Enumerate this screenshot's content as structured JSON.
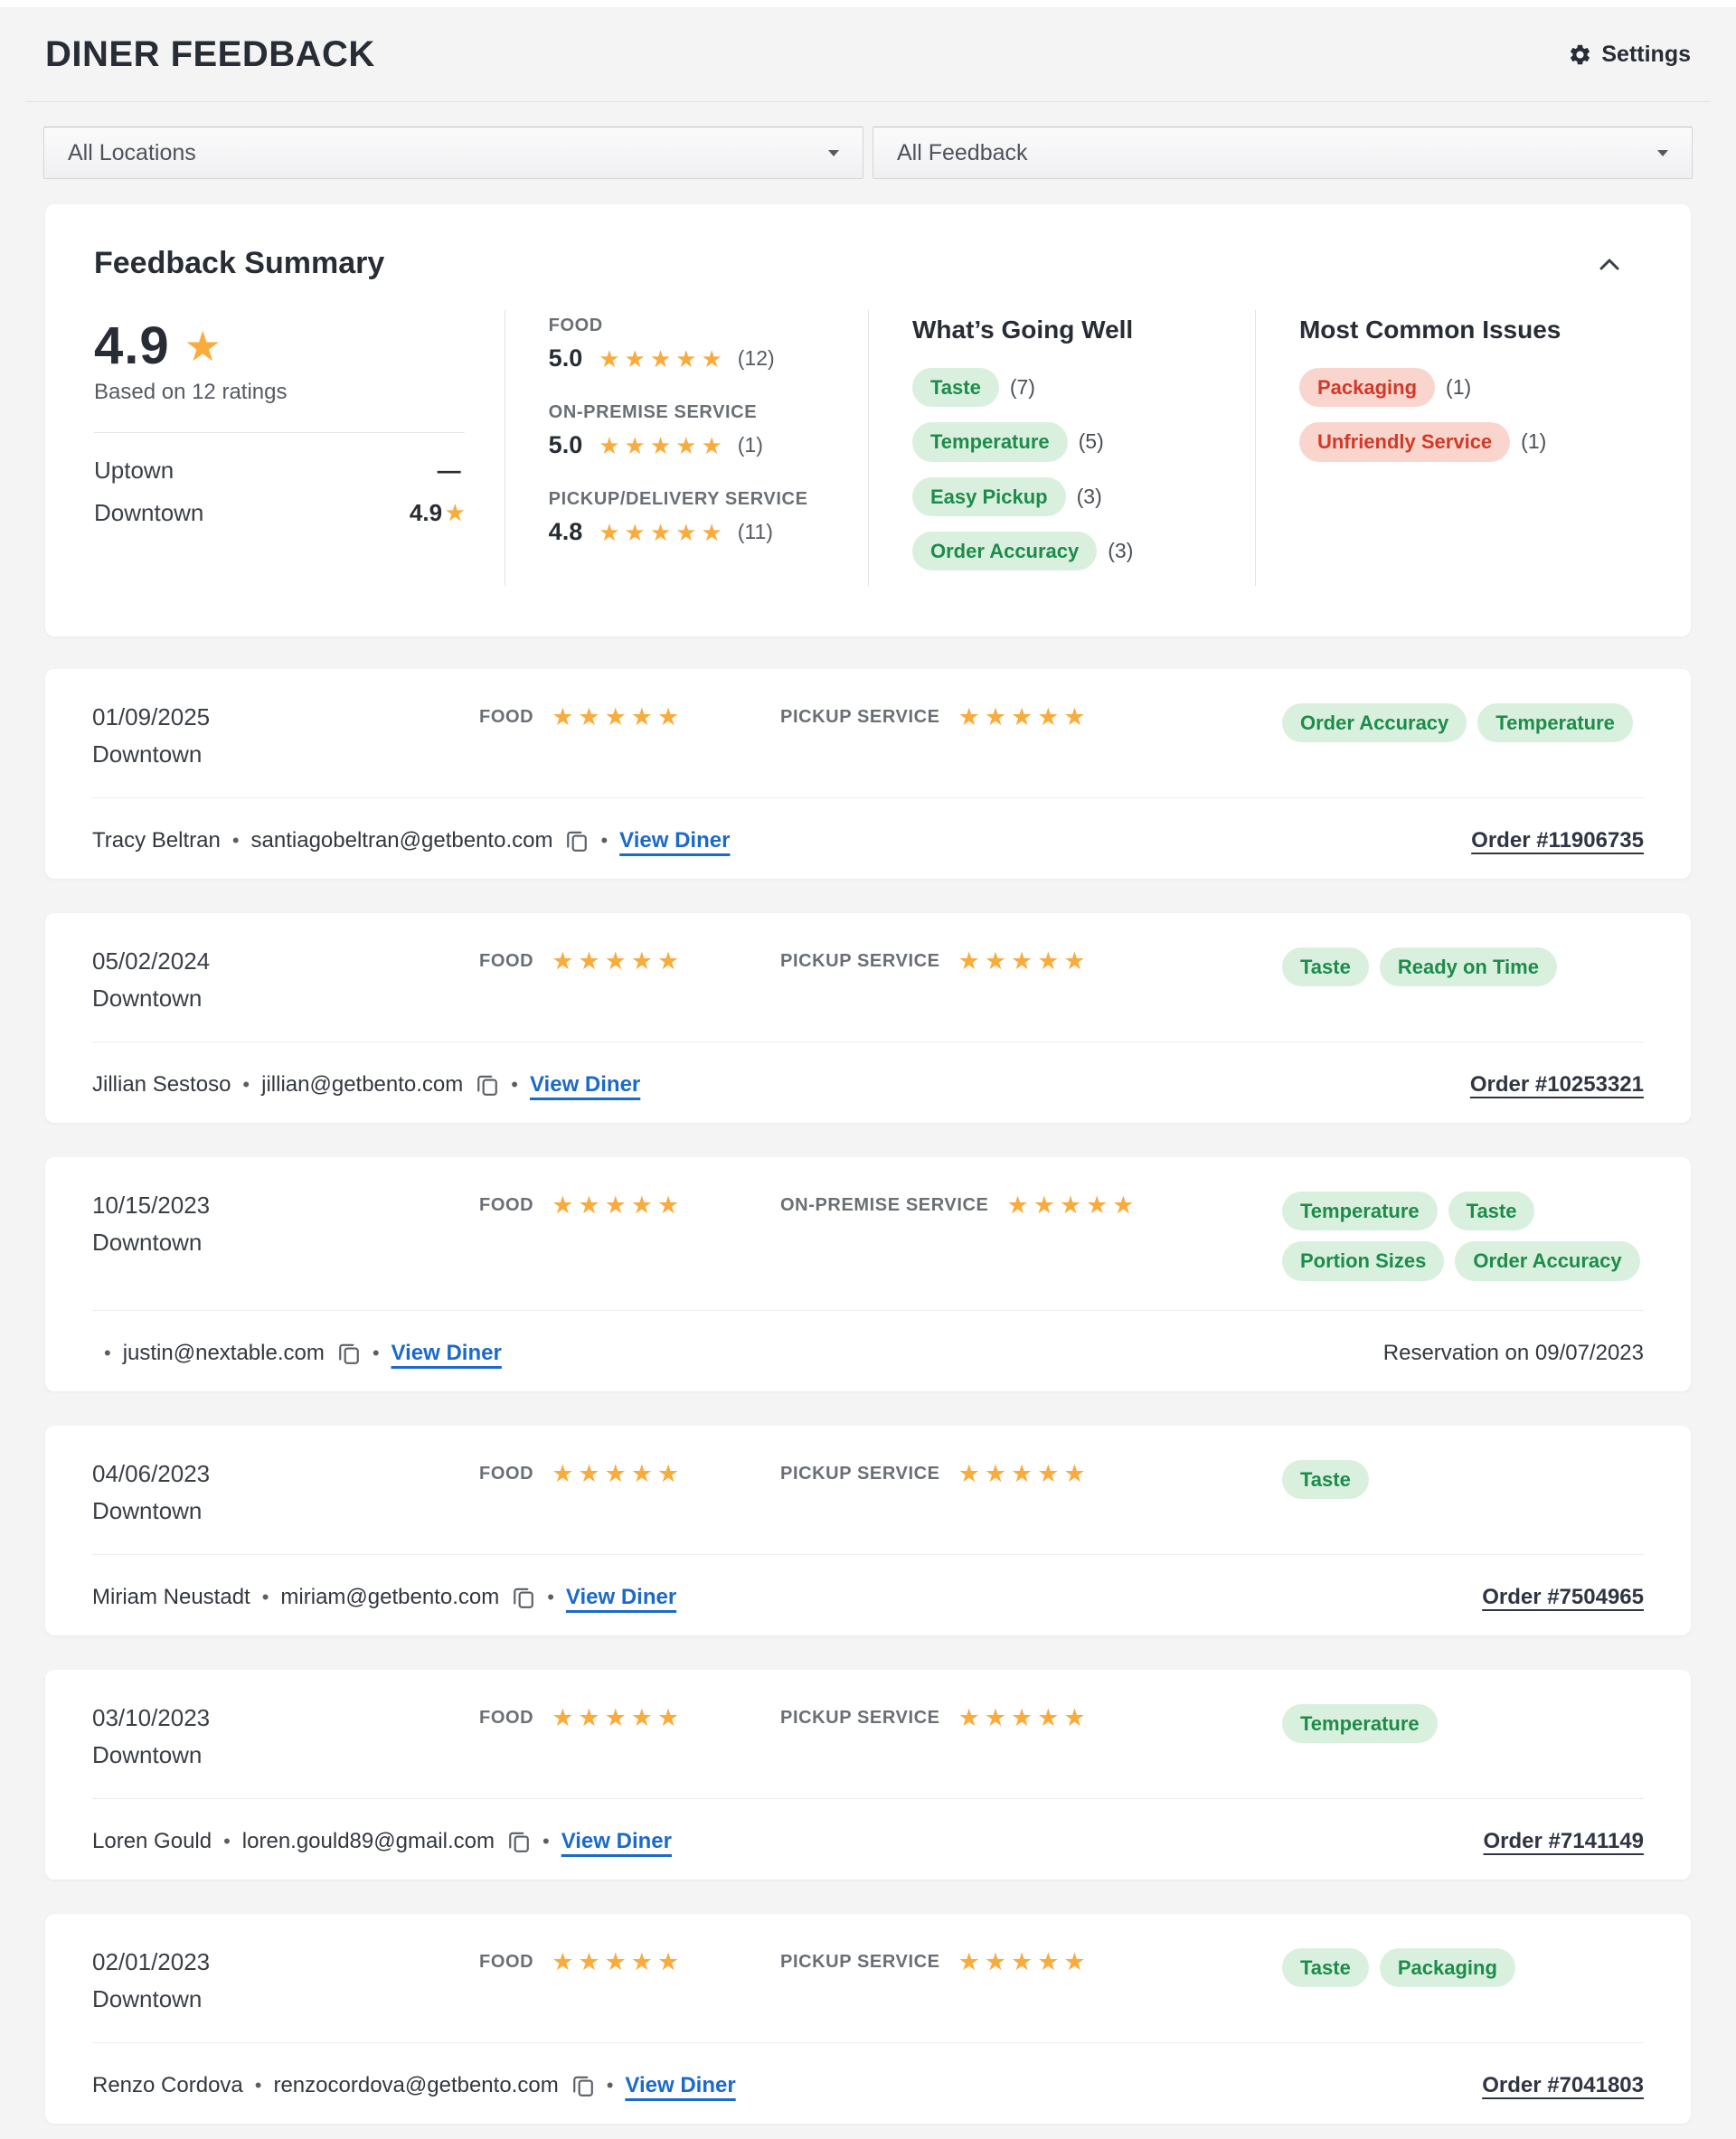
{
  "ui": {
    "bullet": "•"
  },
  "colors": {
    "page_background": "#f4f4f5",
    "card_background": "#ffffff",
    "star_amber": "#f9ab3c",
    "positive_tag_bg": "#d9f0de",
    "positive_tag_text": "#1d8c4b",
    "issue_tag_bg": "#f9d5ce",
    "issue_tag_text": "#d23927",
    "link_blue": "#1b6ac9",
    "heading_text": "#272c35"
  },
  "header": {
    "title": "DINER FEEDBACK",
    "settings_label": "Settings"
  },
  "filters": {
    "location": "All Locations",
    "feedback": "All Feedback"
  },
  "summary": {
    "title": "Feedback Summary",
    "overall": {
      "score": "4.9",
      "stars": 1,
      "based_on": "Based on 12 ratings",
      "locations": [
        {
          "name": "Uptown",
          "value": "—",
          "stars": 0
        },
        {
          "name": "Downtown",
          "value": "4.9",
          "stars": 1
        }
      ]
    },
    "categories": [
      {
        "label": "FOOD",
        "score": "5.0",
        "stars": 5,
        "count": "(12)"
      },
      {
        "label": "ON-PREMISE SERVICE",
        "score": "5.0",
        "stars": 5,
        "count": "(1)"
      },
      {
        "label": "PICKUP/DELIVERY SERVICE",
        "score": "4.8",
        "stars": 5,
        "count": "(11)"
      }
    ],
    "going_well": {
      "title": "What’s Going Well",
      "tags": [
        {
          "label": "Taste",
          "count": "(7)"
        },
        {
          "label": "Temperature",
          "count": "(5)"
        },
        {
          "label": "Easy Pickup",
          "count": "(3)"
        },
        {
          "label": "Order Accuracy",
          "count": "(3)"
        }
      ]
    },
    "issues": {
      "title": "Most Common Issues",
      "tags": [
        {
          "label": "Packaging",
          "count": "(1)"
        },
        {
          "label": "Unfriendly Service",
          "count": "(1)"
        }
      ]
    }
  },
  "feedback": [
    {
      "date": "01/09/2025",
      "location": "Downtown",
      "ratings": [
        {
          "label": "FOOD",
          "stars": 5
        },
        {
          "label": "PICKUP SERVICE",
          "stars": 5
        }
      ],
      "tags": [
        "Order Accuracy",
        "Temperature"
      ],
      "name": "Tracy Beltran",
      "email": "santiagobeltran@getbento.com",
      "link": "View Diner",
      "reference": {
        "text": "Order #11906735",
        "link": true
      }
    },
    {
      "date": "05/02/2024",
      "location": "Downtown",
      "ratings": [
        {
          "label": "FOOD",
          "stars": 5
        },
        {
          "label": "PICKUP SERVICE",
          "stars": 5
        }
      ],
      "tags": [
        "Taste",
        "Ready on Time"
      ],
      "name": "Jillian Sestoso",
      "email": "jillian@getbento.com",
      "link": "View Diner",
      "reference": {
        "text": "Order #10253321",
        "link": true
      }
    },
    {
      "date": "10/15/2023",
      "location": "Downtown",
      "ratings": [
        {
          "label": "FOOD",
          "stars": 5
        },
        {
          "label": "ON-PREMISE SERVICE",
          "stars": 5
        }
      ],
      "tags": [
        "Temperature",
        "Taste",
        "Portion Sizes",
        "Order Accuracy"
      ],
      "name": "",
      "email": "justin@nextable.com",
      "link": "View Diner",
      "reference": {
        "text": "Reservation on 09/07/2023",
        "link": false
      }
    },
    {
      "date": "04/06/2023",
      "location": "Downtown",
      "ratings": [
        {
          "label": "FOOD",
          "stars": 5
        },
        {
          "label": "PICKUP SERVICE",
          "stars": 5
        }
      ],
      "tags": [
        "Taste"
      ],
      "name": "Miriam Neustadt",
      "email": "miriam@getbento.com",
      "link": "View Diner",
      "reference": {
        "text": "Order #7504965",
        "link": true
      }
    },
    {
      "date": "03/10/2023",
      "location": "Downtown",
      "ratings": [
        {
          "label": "FOOD",
          "stars": 5
        },
        {
          "label": "PICKUP SERVICE",
          "stars": 5
        }
      ],
      "tags": [
        "Temperature"
      ],
      "name": "Loren Gould",
      "email": "loren.gould89@gmail.com",
      "link": "View Diner",
      "reference": {
        "text": "Order #7141149",
        "link": true
      }
    },
    {
      "date": "02/01/2023",
      "location": "Downtown",
      "ratings": [
        {
          "label": "FOOD",
          "stars": 5
        },
        {
          "label": "PICKUP SERVICE",
          "stars": 5
        }
      ],
      "tags": [
        "Taste",
        "Packaging"
      ],
      "name": "Renzo Cordova",
      "email": "renzocordova@getbento.com",
      "link": "View Diner",
      "reference": {
        "text": "Order #7041803",
        "link": true
      }
    }
  ]
}
